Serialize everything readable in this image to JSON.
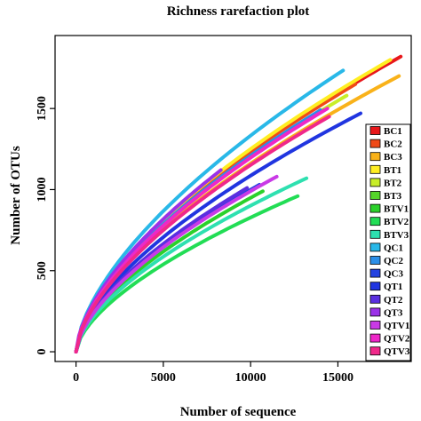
{
  "chart_data": {
    "type": "line",
    "title": "Richness rarefaction plot",
    "xlabel": "Number of sequence",
    "ylabel": "Number of OTUs",
    "xlim": [
      -1200,
      19200
    ],
    "ylim": [
      -60,
      1950
    ],
    "xticks": [
      0,
      5000,
      10000,
      15000
    ],
    "yticks": [
      0,
      500,
      1000,
      1500
    ],
    "legend_position": "right",
    "series": [
      {
        "name": "BC1",
        "color": "#e8171b",
        "max_x": 18600,
        "max_y": 1820
      },
      {
        "name": "BC2",
        "color": "#f04a18",
        "max_x": 16000,
        "max_y": 1650
      },
      {
        "name": "BC3",
        "color": "#f9b21a",
        "max_x": 18500,
        "max_y": 1700
      },
      {
        "name": "BT1",
        "color": "#ffee22",
        "max_x": 18000,
        "max_y": 1800
      },
      {
        "name": "BT2",
        "color": "#c8ee28",
        "max_x": 15500,
        "max_y": 1580
      },
      {
        "name": "BT3",
        "color": "#55d62a",
        "max_x": 14200,
        "max_y": 1490
      },
      {
        "name": "BTV1",
        "color": "#2bd12b",
        "max_x": 10700,
        "max_y": 990
      },
      {
        "name": "BTV2",
        "color": "#22dd55",
        "max_x": 12700,
        "max_y": 960
      },
      {
        "name": "BTV3",
        "color": "#2ee0b0",
        "max_x": 13200,
        "max_y": 1070
      },
      {
        "name": "QC1",
        "color": "#29b8e8",
        "max_x": 15300,
        "max_y": 1735
      },
      {
        "name": "QC2",
        "color": "#2b8fe8",
        "max_x": 14000,
        "max_y": 1490
      },
      {
        "name": "QC3",
        "color": "#2442e0",
        "max_x": 10500,
        "max_y": 1030
      },
      {
        "name": "QT1",
        "color": "#2035e0",
        "max_x": 16300,
        "max_y": 1470
      },
      {
        "name": "QT2",
        "color": "#5a2fe0",
        "max_x": 9800,
        "max_y": 1010
      },
      {
        "name": "QT3",
        "color": "#9b30e8",
        "max_x": 8300,
        "max_y": 1120
      },
      {
        "name": "QTV1",
        "color": "#c93ae6",
        "max_x": 11500,
        "max_y": 1080
      },
      {
        "name": "QTV2",
        "color": "#ee28c8",
        "max_x": 14400,
        "max_y": 1500
      },
      {
        "name": "QTV3",
        "color": "#f0288a",
        "max_x": 14500,
        "max_y": 1450
      }
    ]
  }
}
